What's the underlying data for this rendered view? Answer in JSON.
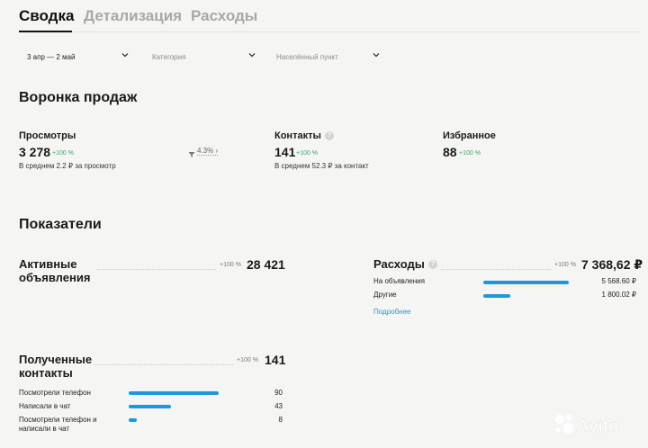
{
  "tabs": [
    {
      "label": "Сводка",
      "active": true
    },
    {
      "label": "Детализация",
      "active": false
    },
    {
      "label": "Расходы",
      "active": false
    }
  ],
  "filters": {
    "period": {
      "value": "3 апр — 2 май"
    },
    "category": {
      "placeholder": "Категория"
    },
    "location": {
      "placeholder": "Населённый пункт"
    }
  },
  "funnel": {
    "title": "Воронка продаж",
    "views": {
      "label": "Просмотры",
      "value": "3 278",
      "delta": "+100 %",
      "sub": "В среднем 2.2 ₽ за просмотр",
      "conversion": "4.3%"
    },
    "contacts": {
      "label": "Контакты",
      "value": "141",
      "delta": "+100 %",
      "sub": "В среднем 52.3 ₽ за контакт"
    },
    "favorites": {
      "label": "Избранное",
      "value": "88",
      "delta": "+100 %"
    }
  },
  "indicators": {
    "title": "Показатели",
    "active_ads": {
      "label": "Активные объявления",
      "delta": "+100 %",
      "value": "28 421"
    },
    "expenses": {
      "label": "Расходы",
      "delta": "+100 %",
      "value": "7 368,62 ₽",
      "rows": [
        {
          "label": "На объявления",
          "value": "5 568.60 ₽",
          "share": 0.76
        },
        {
          "label": "Другие",
          "value": "1 800.02 ₽",
          "share": 0.24
        }
      ],
      "more_link": "Подробнее"
    },
    "received_contacts": {
      "label": "Полученные контакты",
      "delta": "+100 %",
      "value": "141",
      "rows": [
        {
          "label": "Посмотрели телефон",
          "value": "90",
          "share": 0.64
        },
        {
          "label": "Написали в чат",
          "value": "43",
          "share": 0.3
        },
        {
          "label": "Посмотрели телефон и написали в чат",
          "value": "8",
          "share": 0.06
        }
      ]
    }
  },
  "logo": {
    "text": "Avito"
  },
  "colors": {
    "accent": "#2196dd",
    "positive": "#3aa66b",
    "link": "#3d8fcf"
  }
}
